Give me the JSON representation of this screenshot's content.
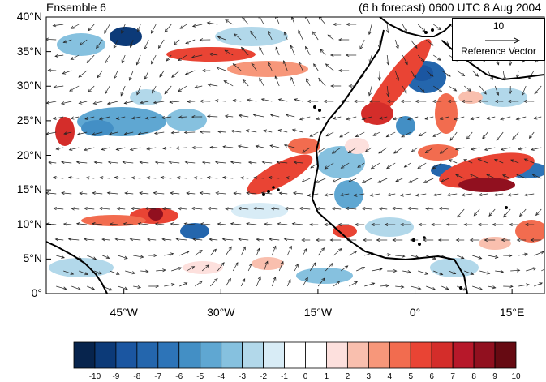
{
  "title_left": "Ensemble 6",
  "title_right": "(6 h forecast) 0600 UTC 8 Aug 2004",
  "y_ticks": [
    {
      "label": "40°N",
      "lat": 40
    },
    {
      "label": "35°N",
      "lat": 35
    },
    {
      "label": "30°N",
      "lat": 30
    },
    {
      "label": "25°N",
      "lat": 25
    },
    {
      "label": "20°N",
      "lat": 20
    },
    {
      "label": "15°N",
      "lat": 15
    },
    {
      "label": "10°N",
      "lat": 10
    },
    {
      "label": "5°N",
      "lat": 5
    },
    {
      "label": "0°",
      "lat": 0
    }
  ],
  "x_ticks": [
    {
      "label": "45°W",
      "lon": -45
    },
    {
      "label": "30°W",
      "lon": -30
    },
    {
      "label": "15°W",
      "lon": -15
    },
    {
      "label": "0°",
      "lon": 0
    },
    {
      "label": "15°E",
      "lon": 15
    }
  ],
  "reference_vector": {
    "magnitude": "10",
    "label": "Reference Vector"
  },
  "colorbar": {
    "labels": [
      "-10",
      "-9",
      "-8",
      "-7",
      "-6",
      "-5",
      "-4",
      "-3",
      "-2",
      "-1",
      "0",
      "1",
      "2",
      "3",
      "4",
      "5",
      "6",
      "7",
      "8",
      "9",
      "10"
    ],
    "colors": [
      "#07244d",
      "#0c3a78",
      "#1b56a1",
      "#2466ad",
      "#2d74b8",
      "#438fc5",
      "#5fa7d2",
      "#86c1df",
      "#b2d8ea",
      "#d8ecf6",
      "#ffffff",
      "#ffffff",
      "#fde0dd",
      "#f9bfae",
      "#f7977a",
      "#f26c4f",
      "#e94434",
      "#d42d2a",
      "#b7182a",
      "#91101f",
      "#660a12"
    ]
  },
  "map": {
    "lon_range": [
      -57,
      20
    ],
    "lat_range": [
      0,
      40
    ]
  }
}
